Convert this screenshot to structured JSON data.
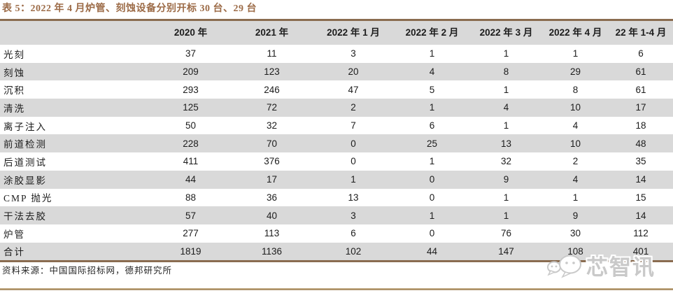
{
  "title": "表 5：2022 年 4 月炉管、刻蚀设备分别开标 30 台、29 台",
  "table": {
    "columns": [
      "",
      "2020 年",
      "2021 年",
      "2022 年 1 月",
      "2022 年 2 月",
      "2022 年 3 月",
      "2022 年 4 月",
      "22 年 1-4 月"
    ],
    "rows": [
      {
        "label": "光刻",
        "values": [
          "37",
          "11",
          "3",
          "1",
          "1",
          "1",
          "6"
        ]
      },
      {
        "label": "刻蚀",
        "values": [
          "209",
          "123",
          "20",
          "4",
          "8",
          "29",
          "61"
        ]
      },
      {
        "label": "沉积",
        "values": [
          "293",
          "246",
          "47",
          "5",
          "1",
          "8",
          "61"
        ]
      },
      {
        "label": "清洗",
        "values": [
          "125",
          "72",
          "2",
          "1",
          "4",
          "10",
          "17"
        ]
      },
      {
        "label": "离子注入",
        "values": [
          "50",
          "32",
          "7",
          "6",
          "1",
          "4",
          "18"
        ]
      },
      {
        "label": "前道检测",
        "values": [
          "228",
          "70",
          "0",
          "25",
          "13",
          "10",
          "48"
        ]
      },
      {
        "label": "后道测试",
        "values": [
          "411",
          "376",
          "0",
          "1",
          "32",
          "2",
          "35"
        ]
      },
      {
        "label": "涂胶显影",
        "values": [
          "44",
          "17",
          "1",
          "0",
          "9",
          "4",
          "14"
        ]
      },
      {
        "label": "CMP 抛光",
        "values": [
          "88",
          "36",
          "13",
          "0",
          "1",
          "1",
          "15"
        ]
      },
      {
        "label": "干法去胶",
        "values": [
          "57",
          "40",
          "3",
          "1",
          "1",
          "9",
          "14"
        ]
      },
      {
        "label": "炉管",
        "values": [
          "277",
          "113",
          "6",
          "0",
          "76",
          "30",
          "112"
        ]
      },
      {
        "label": "合计",
        "values": [
          "1819",
          "1136",
          "102",
          "44",
          "147",
          "108",
          "401"
        ]
      }
    ]
  },
  "source": "资料来源：中国国际招标网，德邦研究所",
  "watermark": {
    "icon": "wechat-chat-bubbles-icon",
    "text": "芯智讯"
  },
  "colors": {
    "title_brown": "#9c6b47",
    "table_border_brown": "#8a6c50",
    "row_alt_gray": "#d9d9d9",
    "divider_tan": "#9d7f52",
    "watermark_gray": "#c9c9c9"
  }
}
